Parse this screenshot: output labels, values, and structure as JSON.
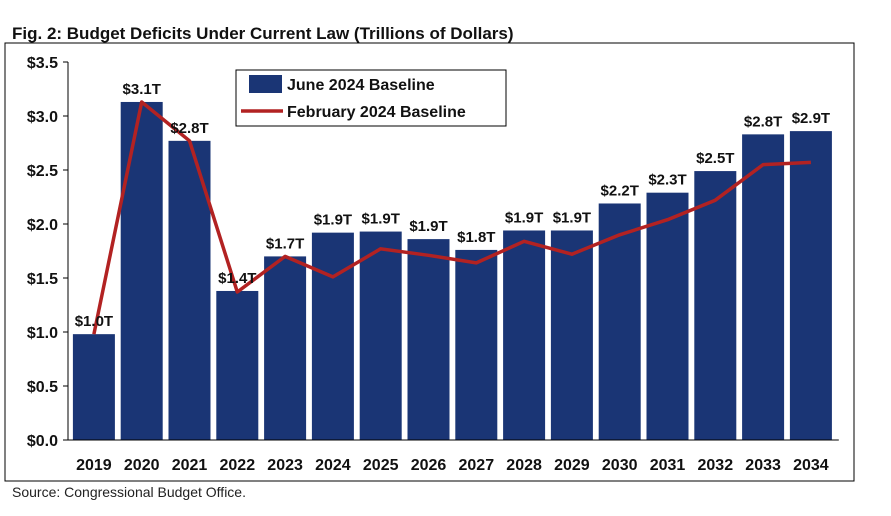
{
  "title": "Fig. 2: Budget Deficits Under Current Law (Trillions of Dollars)",
  "source": "Source: Congressional Budget Office.",
  "colors": {
    "bar": "#1a3575",
    "line": "#b22222",
    "axis": "#000000"
  },
  "chart_data": {
    "type": "bar",
    "title": "Fig. 2: Budget Deficits Under Current Law (Trillions of Dollars)",
    "xlabel": "",
    "ylabel": "",
    "ylim": [
      0,
      3.5
    ],
    "ytick_values": [
      0,
      0.5,
      1.0,
      1.5,
      2.0,
      2.5,
      3.0,
      3.5
    ],
    "ytick_labels": [
      "$0.0",
      "$0.5",
      "$1.0",
      "$1.5",
      "$2.0",
      "$2.5",
      "$3.0",
      "$3.5"
    ],
    "grid": false,
    "legend_position": "top-left",
    "categories": [
      "2019",
      "2020",
      "2021",
      "2022",
      "2023",
      "2024",
      "2025",
      "2026",
      "2027",
      "2028",
      "2029",
      "2030",
      "2031",
      "2032",
      "2033",
      "2034"
    ],
    "series": [
      {
        "name": "June 2024 Baseline",
        "type": "bar",
        "values": [
          0.98,
          3.13,
          2.77,
          1.38,
          1.7,
          1.92,
          1.93,
          1.86,
          1.76,
          1.94,
          1.94,
          2.19,
          2.29,
          2.49,
          2.83,
          2.86
        ],
        "data_labels": [
          "$1.0T",
          "$3.1T",
          "$2.8T",
          "$1.4T",
          "$1.7T",
          "$1.9T",
          "$1.9T",
          "$1.9T",
          "$1.8T",
          "$1.9T",
          "$1.9T",
          "$2.2T",
          "$2.3T",
          "$2.5T",
          "$2.8T",
          "$2.9T"
        ]
      },
      {
        "name": "February 2024 Baseline",
        "type": "line",
        "values": [
          0.98,
          3.13,
          2.77,
          1.37,
          1.7,
          1.51,
          1.77,
          1.71,
          1.64,
          1.84,
          1.72,
          1.9,
          2.04,
          2.22,
          2.55,
          2.57
        ]
      }
    ]
  }
}
